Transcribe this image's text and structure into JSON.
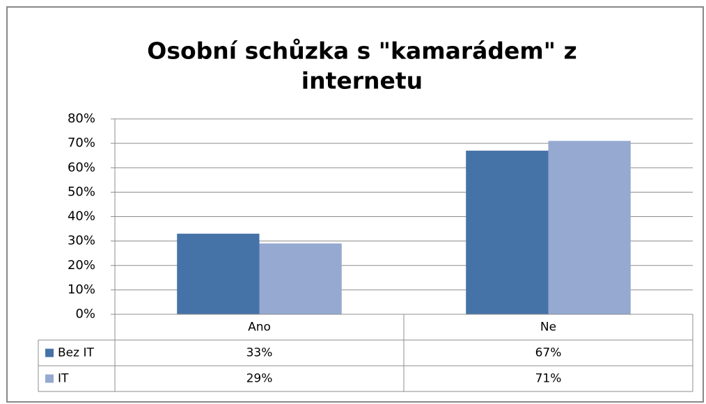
{
  "chart_data": {
    "type": "bar",
    "title": [
      "Osobní schůzka s \"kamarádem\" z",
      "internetu"
    ],
    "categories": [
      "Ano",
      "Ne"
    ],
    "series": [
      {
        "name": "Bez IT",
        "color": "#4572a7",
        "values": [
          33,
          67
        ],
        "value_labels": [
          "33%",
          "67%"
        ]
      },
      {
        "name": "IT",
        "color": "#95a9d1",
        "values": [
          29,
          71
        ],
        "value_labels": [
          "29%",
          "71%"
        ]
      }
    ],
    "ylim": [
      0,
      80
    ],
    "yticks": [
      {
        "value": 0,
        "label": "0%"
      },
      {
        "value": 10,
        "label": "10%"
      },
      {
        "value": 20,
        "label": "20%"
      },
      {
        "value": 30,
        "label": "30%"
      },
      {
        "value": 40,
        "label": "40%"
      },
      {
        "value": 50,
        "label": "50%"
      },
      {
        "value": 60,
        "label": "60%"
      },
      {
        "value": 70,
        "label": "70%"
      },
      {
        "value": 80,
        "label": "80%"
      }
    ],
    "grid": true
  }
}
